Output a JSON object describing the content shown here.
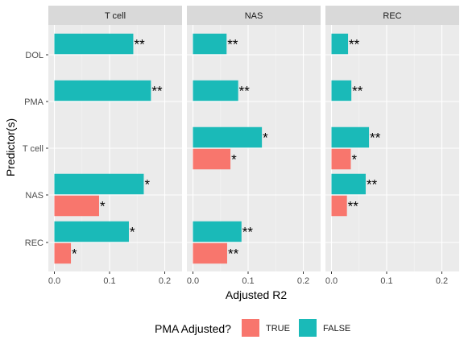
{
  "chart_data": {
    "type": "bar",
    "orientation": "horizontal",
    "facets": [
      "T cell",
      "NAS",
      "REC"
    ],
    "categories": [
      "DOL",
      "PMA",
      "T cell",
      "NAS",
      "REC"
    ],
    "xlabel": "Adjusted R2",
    "ylabel": "Predictor(s)",
    "xlim": [
      0,
      0.22
    ],
    "xticks": [
      "0.0",
      "0.1",
      "0.2"
    ],
    "grid": true,
    "legend": {
      "title": "PMA Adjusted?",
      "position": "bottom",
      "entries": [
        {
          "label": "TRUE",
          "color": "#F8766D"
        },
        {
          "label": "FALSE",
          "color": "#1ABAB8"
        }
      ]
    },
    "series": [
      {
        "name": "TRUE",
        "color": "#F8766D",
        "panels": [
          {
            "facet": "T cell",
            "values": [
              null,
              null,
              null,
              0.081,
              0.03
            ],
            "labels": [
              "",
              "",
              "",
              "*",
              "*"
            ]
          },
          {
            "facet": "NAS",
            "values": [
              null,
              null,
              0.068,
              null,
              0.062
            ],
            "labels": [
              "",
              "",
              "*",
              "",
              "**"
            ]
          },
          {
            "facet": "REC",
            "values": [
              null,
              null,
              0.035,
              0.028,
              null
            ],
            "labels": [
              "",
              "",
              "*",
              "**",
              ""
            ]
          }
        ]
      },
      {
        "name": "FALSE",
        "color": "#1ABAB8",
        "panels": [
          {
            "facet": "T cell",
            "values": [
              0.143,
              0.175,
              null,
              0.162,
              0.135
            ],
            "labels": [
              "**",
              "**",
              "",
              "*",
              "*"
            ]
          },
          {
            "facet": "NAS",
            "values": [
              0.061,
              0.082,
              0.125,
              null,
              0.088
            ],
            "labels": [
              "**",
              "**",
              "*",
              "",
              "**"
            ]
          },
          {
            "facet": "REC",
            "values": [
              0.03,
              0.036,
              0.068,
              0.062,
              null
            ],
            "labels": [
              "**",
              "**",
              "**",
              "**",
              ""
            ]
          }
        ]
      }
    ]
  }
}
